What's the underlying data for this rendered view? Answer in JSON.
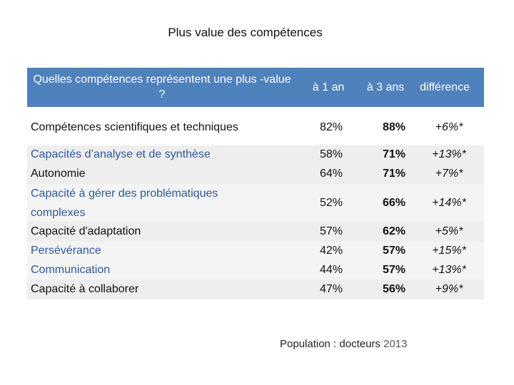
{
  "title": "Plus value des compétences",
  "header": {
    "question": "Quelles compétences représentent une plus -value ?",
    "col1": "à 1 an",
    "col2": "à 3 ans",
    "col3": "différence",
    "bg_color": "#4F81BD"
  },
  "rows": [
    {
      "label": "Compétences scientifiques et techniques",
      "v1": "82%",
      "v2": "88%",
      "v3": "+6%*"
    },
    {
      "label": "Capacités d’analyse et de synthèse",
      "v1": "58%",
      "v2": "71%",
      "v3": "+13%*"
    },
    {
      "label": "Autonomie",
      "v1": "64%",
      "v2": "71%",
      "v3": "+7%*"
    },
    {
      "label": "Capacité à gérer des problématiques complexes",
      "v1": "52%",
      "v2": "66%",
      "v3": "+14%*"
    },
    {
      "label": "Capacité d'adaptation",
      "v1": "57%",
      "v2": "62%",
      "v3": "+5%*"
    },
    {
      "label": "Persévérance",
      "v1": "42%",
      "v2": "57%",
      "v3": "+15%*"
    },
    {
      "label": "Communication",
      "v1": "44%",
      "v2": "57%",
      "v3": "+13%*"
    },
    {
      "label": "Capacité à collaborer",
      "v1": "47%",
      "v2": "56%",
      "v3": "+9%*"
    }
  ],
  "footer": {
    "label": "Population : docteurs",
    "year": "2013"
  }
}
